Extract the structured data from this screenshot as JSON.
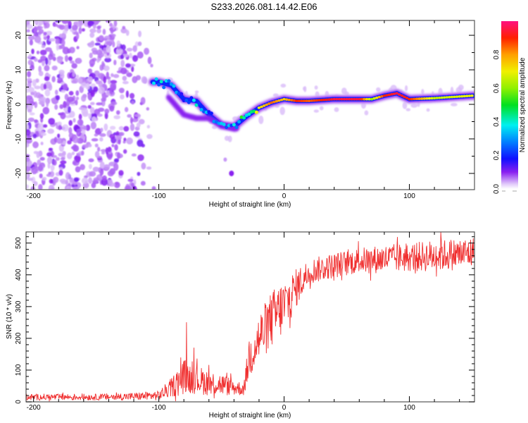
{
  "title": "S233.2026.081.14.42.E06",
  "chart_data": [
    {
      "type": "heatmap",
      "name": "spectrogram",
      "xlabel": "Height of straight line (km)",
      "ylabel": "Frequency (Hz)",
      "xlim": [
        -206,
        152
      ],
      "ylim": [
        -24.7,
        24.3
      ],
      "xticks": [
        -200,
        -100,
        0,
        100
      ],
      "xtick_labels": [
        "-200",
        "-100",
        "0",
        "100"
      ],
      "yticks": [
        -20,
        -10,
        0,
        10,
        20
      ],
      "ytick_labels": [
        "-20",
        "-10",
        "0",
        "10",
        "20"
      ],
      "colorbar": {
        "label": "Normalized spectral amplitude",
        "range": [
          0,
          1
        ],
        "ticks": [
          0.0,
          0.2,
          0.4,
          0.6,
          0.8
        ],
        "tick_labels": [
          "0.0",
          "0.2",
          "0.4",
          "0.6",
          "0.8"
        ],
        "colors": [
          "#ffffff",
          "#d8b8f8",
          "#8020f0",
          "#2020ff",
          "#00a0ff",
          "#00f0f0",
          "#00e020",
          "#80f000",
          "#f0f000",
          "#ffa000",
          "#ff2000",
          "#ff1070"
        ]
      },
      "ridge": {
        "x": [
          -100,
          -90,
          -80,
          -70,
          -60,
          -50,
          -40,
          -30,
          -20,
          -10,
          0,
          10,
          20,
          40,
          60,
          70,
          80,
          90,
          100,
          120,
          150
        ],
        "freq": [
          6.5,
          5.5,
          1.5,
          1.0,
          -3.0,
          -6.0,
          -6.5,
          -3.5,
          -1.0,
          0.5,
          1.5,
          1.0,
          1.0,
          1.5,
          1.5,
          1.5,
          2.5,
          3.2,
          1.5,
          1.8,
          2.5
        ],
        "amplitude": [
          0.35,
          0.3,
          0.25,
          0.35,
          0.3,
          0.3,
          0.35,
          0.55,
          0.7,
          0.85,
          0.75,
          0.9,
          0.85,
          0.95,
          0.95,
          0.6,
          0.9,
          0.95,
          0.9,
          0.65,
          0.7
        ]
      },
      "noise_region_x": [
        -206,
        -100
      ],
      "noise_level": 0.15
    },
    {
      "type": "line",
      "name": "snr",
      "xlabel": "Height of straight line (km)",
      "ylabel": "SNR (10 * v/v)",
      "xlim": [
        -206,
        152
      ],
      "ylim": [
        0,
        535
      ],
      "xticks": [
        -200,
        -100,
        0,
        100
      ],
      "xtick_labels": [
        "-200",
        "-100",
        "0",
        "100"
      ],
      "yticks": [
        0,
        100,
        200,
        300,
        400,
        500
      ],
      "ytick_labels": [
        "0",
        "100",
        "200",
        "300",
        "400",
        "500"
      ],
      "color": "#f03030",
      "envelope": {
        "x": [
          -206,
          -150,
          -120,
          -100,
          -90,
          -80,
          -70,
          -60,
          -50,
          -40,
          -32,
          -28,
          -20,
          -10,
          0,
          10,
          20,
          40,
          60,
          80,
          100,
          120,
          152
        ],
        "mean": [
          15,
          15,
          17,
          20,
          45,
          80,
          70,
          60,
          55,
          45,
          40,
          140,
          200,
          260,
          300,
          360,
          410,
          430,
          445,
          450,
          455,
          460,
          470
        ],
        "spread": [
          10,
          10,
          12,
          15,
          30,
          55,
          45,
          40,
          35,
          25,
          20,
          70,
          80,
          90,
          90,
          60,
          40,
          40,
          40,
          45,
          45,
          50,
          50
        ]
      },
      "peaks": [
        {
          "x": -78,
          "y": 250
        },
        {
          "x": -72,
          "y": 170
        },
        {
          "x": 125,
          "y": 535
        }
      ]
    }
  ]
}
